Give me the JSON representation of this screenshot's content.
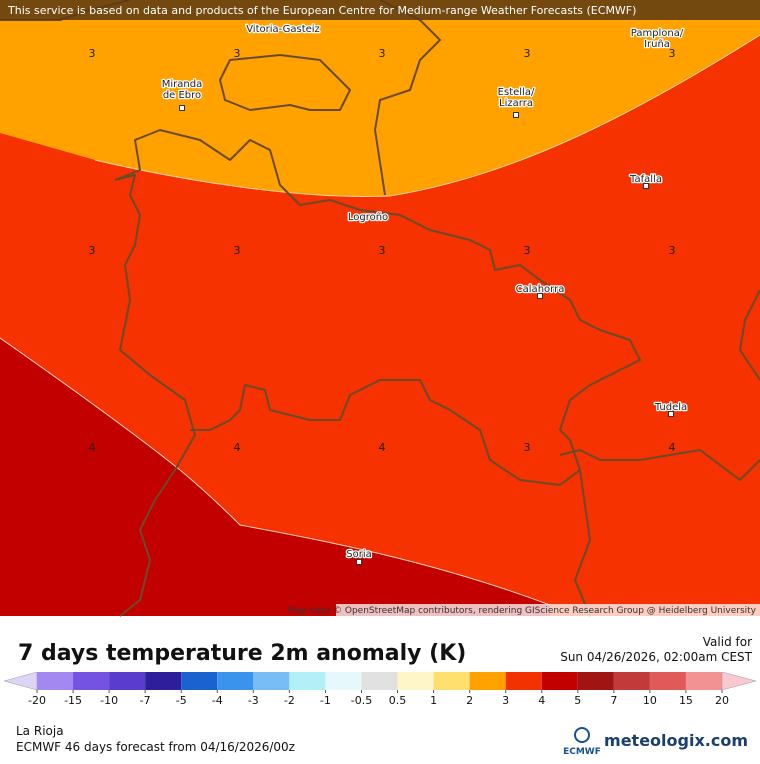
{
  "map": {
    "banner": "This service is based on data and products of the European Centre for Medium-range Weather Forecasts (ECMWF)",
    "attribution": "Map data © OpenStreetMap contributors, rendering GIScience Research Group @ Heidelberg University",
    "cities": [
      {
        "lines": [
          "Vitoria-Gasteiz"
        ]
      },
      {
        "lines": [
          "Pamplona/",
          "Iruña"
        ]
      },
      {
        "lines": [
          "Miranda",
          "de Ebro"
        ]
      },
      {
        "lines": [
          "Estella/",
          "Lizarra"
        ]
      },
      {
        "lines": [
          "Tafalla"
        ]
      },
      {
        "lines": [
          "Logroño"
        ]
      },
      {
        "lines": [
          "Calahorra"
        ]
      },
      {
        "lines": [
          "Tudela"
        ]
      },
      {
        "lines": [
          "Soria"
        ]
      }
    ],
    "grid_values": [
      [
        3,
        3,
        3,
        3,
        3
      ],
      [
        3,
        3,
        3,
        3,
        3
      ],
      [
        4,
        4,
        4,
        3,
        4
      ]
    ]
  },
  "header": {
    "title": "7 days temperature 2m anomaly (K)",
    "valid_label": "Valid for",
    "valid_time": "Sun 04/26/2026, 02:00am CEST"
  },
  "legend": {
    "ticks": [
      -20,
      -15,
      -10,
      -7,
      -5,
      -4,
      -3,
      -2,
      -1,
      -0.5,
      0.5,
      1,
      2,
      3,
      4,
      5,
      7,
      10,
      15,
      20
    ],
    "colors": [
      "#ddd4f7",
      "#a488f2",
      "#7452e2",
      "#5a3ccf",
      "#2f1e9c",
      "#1a62cf",
      "#3a94ee",
      "#78bdf6",
      "#b3eff7",
      "#e6f8fb",
      "#e1e1e1",
      "#fff6c8",
      "#ffe06e",
      "#ffa200",
      "#f23200",
      "#c20000",
      "#a01414",
      "#c23a3a",
      "#e05a5a",
      "#f29292",
      "#f9c9cf"
    ]
  },
  "footer": {
    "region": "La Rioja",
    "forecast": "ECMWF 46 days forecast from  04/16/2026/00z",
    "ecmwf_logo": "ECMWF",
    "brand": "meteologix.com"
  }
}
